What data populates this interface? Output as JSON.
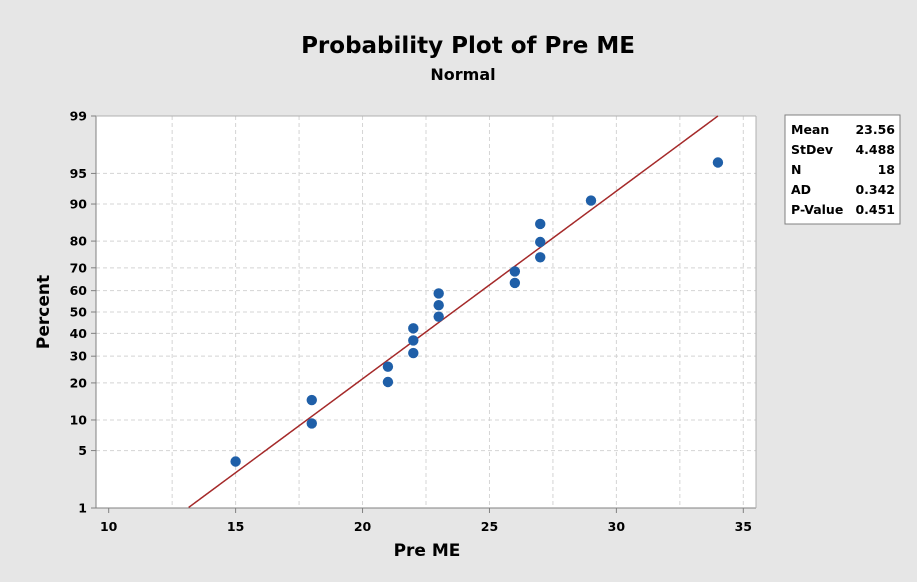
{
  "chart_data": {
    "type": "scatter",
    "title": "Probability Plot of Pre ME",
    "subtitle": "Normal",
    "xlabel": "Pre ME",
    "ylabel": "Percent",
    "xlim": [
      9.5,
      35.5
    ],
    "ylim": [
      1,
      99
    ],
    "y_scale": "normal-probability",
    "grid": true,
    "x_ticks": [
      10,
      15,
      20,
      25,
      30,
      35
    ],
    "y_ticks": [
      1,
      5,
      10,
      20,
      30,
      40,
      50,
      60,
      70,
      80,
      90,
      95,
      99
    ],
    "points": [
      {
        "x": 15,
        "y": 3.8
      },
      {
        "x": 18,
        "y": 9.3
      },
      {
        "x": 18,
        "y": 14.8
      },
      {
        "x": 21,
        "y": 20.3
      },
      {
        "x": 21,
        "y": 25.8
      },
      {
        "x": 22,
        "y": 31.3
      },
      {
        "x": 22,
        "y": 36.8
      },
      {
        "x": 22,
        "y": 42.3
      },
      {
        "x": 23,
        "y": 47.8
      },
      {
        "x": 23,
        "y": 53.2
      },
      {
        "x": 23,
        "y": 58.7
      },
      {
        "x": 26,
        "y": 63.5
      },
      {
        "x": 26,
        "y": 68.5
      },
      {
        "x": 27,
        "y": 74.2
      },
      {
        "x": 27,
        "y": 79.7
      },
      {
        "x": 27,
        "y": 85.2
      },
      {
        "x": 29,
        "y": 90.7
      },
      {
        "x": 34,
        "y": 96.2
      }
    ],
    "fit_line": {
      "mean": 23.56,
      "stdev": 4.488,
      "color": "#a52a2a"
    },
    "point_color": "#1f5fa8",
    "legend_position": "right",
    "stats": [
      {
        "label": "Mean",
        "value": "23.56"
      },
      {
        "label": "StDev",
        "value": "4.488"
      },
      {
        "label": "N",
        "value": "18"
      },
      {
        "label": "AD",
        "value": "0.342"
      },
      {
        "label": "P-Value",
        "value": "0.451"
      }
    ]
  }
}
